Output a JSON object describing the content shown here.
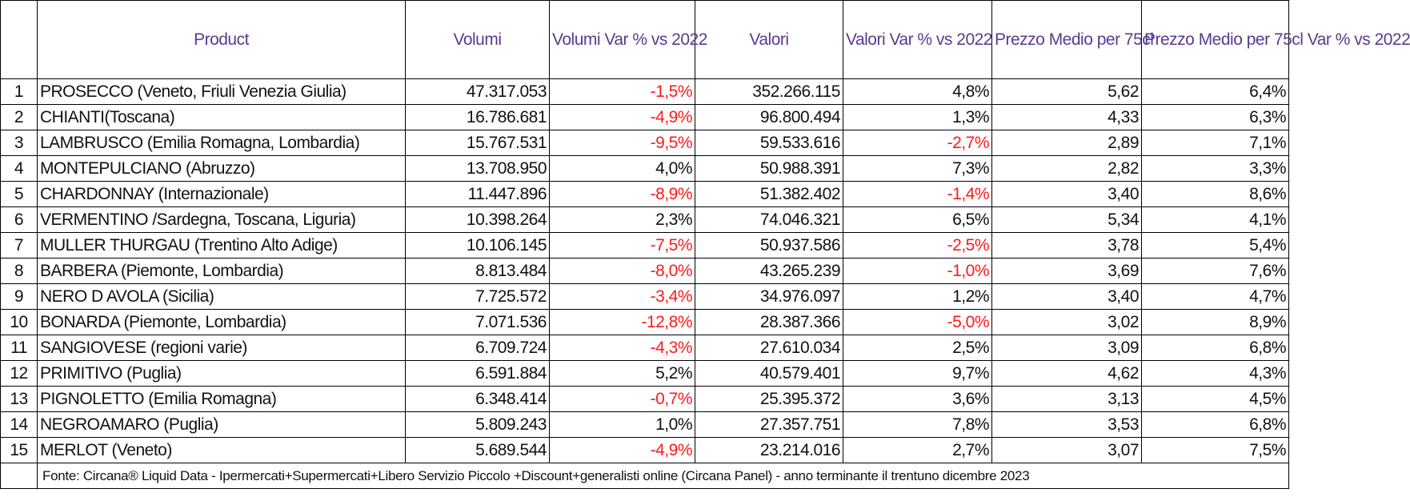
{
  "headers": {
    "product": "Product",
    "volumi": "Volumi",
    "volumi_var": "Volumi Var % vs 2022",
    "valori": "Valori",
    "valori_var": "Valori Var % vs 2022",
    "prezzo": "Prezzo Medio per 75cl",
    "prezzo_var": "Prezzo Medio per 75cl Var % vs 2022"
  },
  "rows": [
    {
      "idx": "1",
      "product": "PROSECCO  (Veneto, Friuli Venezia Giulia)",
      "volumi": "47.317.053",
      "volumi_var": "-1,5%",
      "valori": "352.266.115",
      "valori_var": "4,8%",
      "prezzo": "5,62",
      "prezzo_var": "6,4%"
    },
    {
      "idx": "2",
      "product": "CHIANTI(Toscana)",
      "volumi": "16.786.681",
      "volumi_var": "-4,9%",
      "valori": "96.800.494",
      "valori_var": "1,3%",
      "prezzo": "4,33",
      "prezzo_var": "6,3%"
    },
    {
      "idx": "3",
      "product": "LAMBRUSCO (Emilia Romagna, Lombardia)",
      "volumi": "15.767.531",
      "volumi_var": "-9,5%",
      "valori": "59.533.616",
      "valori_var": "-2,7%",
      "prezzo": "2,89",
      "prezzo_var": "7,1%"
    },
    {
      "idx": "4",
      "product": "MONTEPULCIANO (Abruzzo)",
      "volumi": "13.708.950",
      "volumi_var": "4,0%",
      "valori": "50.988.391",
      "valori_var": "7,3%",
      "prezzo": "2,82",
      "prezzo_var": "3,3%"
    },
    {
      "idx": "5",
      "product": "CHARDONNAY (Internazionale)",
      "volumi": "11.447.896",
      "volumi_var": "-8,9%",
      "valori": "51.382.402",
      "valori_var": "-1,4%",
      "prezzo": "3,40",
      "prezzo_var": "8,6%"
    },
    {
      "idx": "6",
      "product": "VERMENTINO /Sardegna, Toscana, Liguria)",
      "volumi": "10.398.264",
      "volumi_var": "2,3%",
      "valori": "74.046.321",
      "valori_var": "6,5%",
      "prezzo": "5,34",
      "prezzo_var": "4,1%"
    },
    {
      "idx": "7",
      "product": "MULLER THURGAU (Trentino Alto Adige)",
      "volumi": "10.106.145",
      "volumi_var": "-7,5%",
      "valori": "50.937.586",
      "valori_var": "-2,5%",
      "prezzo": "3,78",
      "prezzo_var": "5,4%"
    },
    {
      "idx": "8",
      "product": "BARBERA (Piemonte, Lombardia)",
      "volumi": "8.813.484",
      "volumi_var": "-8,0%",
      "valori": "43.265.239",
      "valori_var": "-1,0%",
      "prezzo": "3,69",
      "prezzo_var": "7,6%"
    },
    {
      "idx": "9",
      "product": "NERO D AVOLA (Sicilia)",
      "volumi": "7.725.572",
      "volumi_var": "-3,4%",
      "valori": "34.976.097",
      "valori_var": "1,2%",
      "prezzo": "3,40",
      "prezzo_var": "4,7%"
    },
    {
      "idx": "10",
      "product": "BONARDA (Piemonte, Lombardia)",
      "volumi": "7.071.536",
      "volumi_var": "-12,8%",
      "valori": "28.387.366",
      "valori_var": "-5,0%",
      "prezzo": "3,02",
      "prezzo_var": "8,9%"
    },
    {
      "idx": "11",
      "product": "SANGIOVESE (regioni varie)",
      "volumi": "6.709.724",
      "volumi_var": "-4,3%",
      "valori": "27.610.034",
      "valori_var": "2,5%",
      "prezzo": "3,09",
      "prezzo_var": "6,8%"
    },
    {
      "idx": "12",
      "product": "PRIMITIVO (Puglia)",
      "volumi": "6.591.884",
      "volumi_var": "5,2%",
      "valori": "40.579.401",
      "valori_var": "9,7%",
      "prezzo": "4,62",
      "prezzo_var": "4,3%"
    },
    {
      "idx": "13",
      "product": "PIGNOLETTO (Emilia Romagna)",
      "volumi": "6.348.414",
      "volumi_var": "-0,7%",
      "valori": "25.395.372",
      "valori_var": "3,6%",
      "prezzo": "3,13",
      "prezzo_var": "4,5%"
    },
    {
      "idx": "14",
      "product": "NEGROAMARO (Puglia)",
      "volumi": "5.809.243",
      "volumi_var": "1,0%",
      "valori": "27.357.751",
      "valori_var": "7,8%",
      "prezzo": "3,53",
      "prezzo_var": "6,8%"
    },
    {
      "idx": "15",
      "product": "MERLOT (Veneto)",
      "volumi": "5.689.544",
      "volumi_var": "-4,9%",
      "valori": "23.214.016",
      "valori_var": "2,7%",
      "prezzo": "3,07",
      "prezzo_var": "7,5%"
    }
  ],
  "footer": {
    "source": "Fonte: Circana® Liquid Data - Ipermercati+Supermercati+Libero Servizio Piccolo +Discount+generalisti online (Circana Panel) - anno terminante il trentuno dicembre 2023"
  },
  "colors": {
    "header_text": "#5b3a8f",
    "negative_text": "#ff1a1a",
    "body_text": "#111111"
  }
}
